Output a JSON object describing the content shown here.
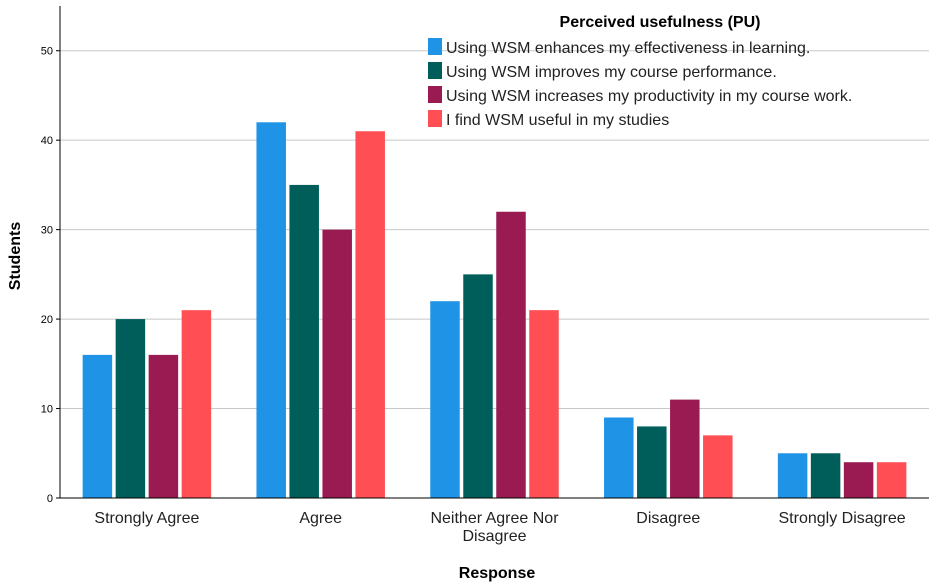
{
  "chart_data": {
    "type": "bar",
    "xlabel": "Response",
    "ylabel": "Students",
    "ylim": [
      0,
      55
    ],
    "yticks": [
      0,
      10,
      20,
      30,
      40,
      50
    ],
    "grid": true,
    "legend": {
      "title": "Perceived usefulness (PU)",
      "placement": "top-right"
    },
    "categories": [
      [
        "Strongly Agree"
      ],
      [
        "Agree"
      ],
      [
        "Neither Agree Nor",
        "Disagree"
      ],
      [
        "Disagree"
      ],
      [
        "Strongly Disagree"
      ]
    ],
    "series": [
      {
        "name": "Using WSM enhances my effectiveness in learning.",
        "color": "#1f93e6",
        "values": [
          16,
          42,
          22,
          9,
          5
        ]
      },
      {
        "name": "Using WSM improves my course performance.",
        "color": "#005e5a",
        "values": [
          20,
          35,
          25,
          8,
          5
        ]
      },
      {
        "name": "Using WSM increases my productivity in my course work.",
        "color": "#9a1b52",
        "values": [
          16,
          30,
          32,
          11,
          4
        ]
      },
      {
        "name": "I find WSM useful in my studies",
        "color": "#ff4f55",
        "values": [
          21,
          41,
          21,
          7,
          4
        ]
      }
    ]
  }
}
